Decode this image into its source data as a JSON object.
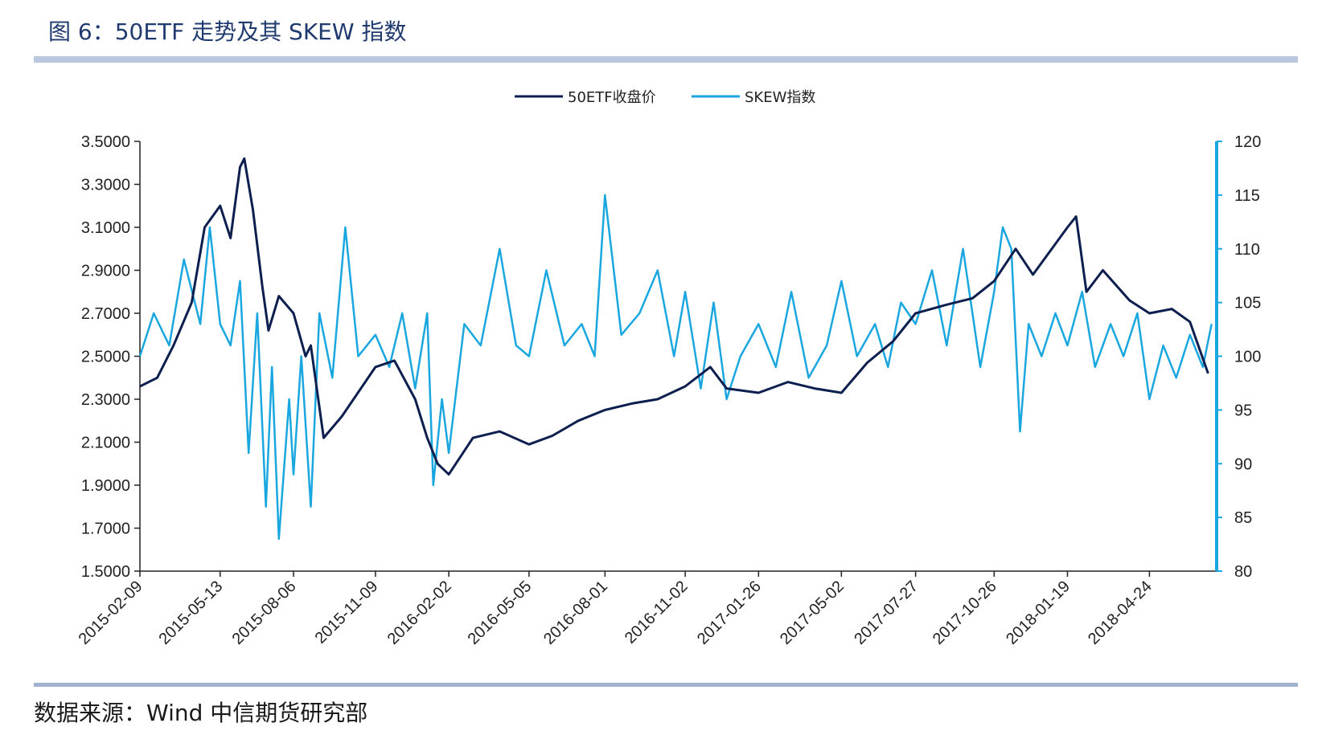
{
  "title": "图 6：50ETF 走势及其 SKEW 指数",
  "source": "数据来源：Wind  中信期货研究部",
  "colors": {
    "etf": "#0d1f4f",
    "skew": "#1aa7e0",
    "band": "#b9c8dd"
  },
  "chart_data": {
    "type": "line",
    "title": "",
    "x_tick_labels": [
      "2015-02-09",
      "2015-05-13",
      "2015-08-06",
      "2015-11-09",
      "2016-02-02",
      "2016-05-05",
      "2016-08-01",
      "2016-11-02",
      "2017-01-26",
      "2017-05-02",
      "2017-07-27",
      "2017-10-26",
      "2018-01-19",
      "2018-04-24"
    ],
    "y_left": {
      "min": 1.5,
      "max": 3.5,
      "ticks": [
        "3.5000",
        "3.3000",
        "3.1000",
        "2.9000",
        "2.7000",
        "2.5000",
        "2.3000",
        "2.1000",
        "1.9000",
        "1.7000",
        "1.5000"
      ]
    },
    "y_right": {
      "min": 80,
      "max": 120,
      "ticks": [
        "120",
        "115",
        "110",
        "105",
        "100",
        "95",
        "90",
        "85",
        "80"
      ]
    },
    "legend_position": "top-center",
    "series": [
      {
        "name": "50ETF收盘价",
        "axis": "left",
        "x": [
          "2015-02-09",
          "2015-03-01",
          "2015-03-20",
          "2015-04-10",
          "2015-04-25",
          "2015-05-13",
          "2015-05-25",
          "2015-06-05",
          "2015-06-10",
          "2015-06-20",
          "2015-07-01",
          "2015-07-08",
          "2015-07-20",
          "2015-08-06",
          "2015-08-20",
          "2015-08-26",
          "2015-09-10",
          "2015-10-01",
          "2015-11-09",
          "2015-12-01",
          "2015-12-25",
          "2016-01-08",
          "2016-01-20",
          "2016-02-02",
          "2016-03-01",
          "2016-04-01",
          "2016-05-05",
          "2016-06-01",
          "2016-07-01",
          "2016-08-01",
          "2016-09-01",
          "2016-10-01",
          "2016-11-02",
          "2016-12-01",
          "2016-12-20",
          "2017-01-26",
          "2017-03-01",
          "2017-04-01",
          "2017-05-02",
          "2017-06-01",
          "2017-07-01",
          "2017-07-27",
          "2017-09-01",
          "2017-10-01",
          "2017-10-26",
          "2017-11-20",
          "2017-12-10",
          "2018-01-19",
          "2018-01-29",
          "2018-02-10",
          "2018-03-01",
          "2018-04-01",
          "2018-04-24",
          "2018-05-20",
          "2018-06-10",
          "2018-07-01"
        ],
        "values": [
          2.36,
          2.4,
          2.55,
          2.75,
          3.1,
          3.2,
          3.05,
          3.38,
          3.42,
          3.18,
          2.82,
          2.62,
          2.78,
          2.7,
          2.5,
          2.55,
          2.12,
          2.22,
          2.45,
          2.48,
          2.3,
          2.12,
          2.0,
          1.95,
          2.12,
          2.15,
          2.09,
          2.13,
          2.2,
          2.25,
          2.28,
          2.3,
          2.36,
          2.45,
          2.35,
          2.33,
          2.38,
          2.35,
          2.33,
          2.47,
          2.57,
          2.7,
          2.74,
          2.77,
          2.85,
          3.0,
          2.88,
          3.1,
          3.15,
          2.8,
          2.9,
          2.76,
          2.7,
          2.72,
          2.66,
          2.42
        ]
      },
      {
        "name": "SKEW指数",
        "axis": "right",
        "x": [
          "2015-02-09",
          "2015-02-25",
          "2015-03-15",
          "2015-04-01",
          "2015-04-20",
          "2015-05-01",
          "2015-05-13",
          "2015-05-25",
          "2015-06-05",
          "2015-06-15",
          "2015-06-25",
          "2015-07-05",
          "2015-07-12",
          "2015-07-20",
          "2015-08-01",
          "2015-08-06",
          "2015-08-15",
          "2015-08-26",
          "2015-09-05",
          "2015-09-20",
          "2015-10-05",
          "2015-10-20",
          "2015-11-09",
          "2015-11-25",
          "2015-12-10",
          "2015-12-25",
          "2016-01-08",
          "2016-01-15",
          "2016-01-25",
          "2016-02-02",
          "2016-02-20",
          "2016-03-10",
          "2016-04-01",
          "2016-04-20",
          "2016-05-05",
          "2016-05-25",
          "2016-06-15",
          "2016-07-05",
          "2016-07-20",
          "2016-08-01",
          "2016-08-20",
          "2016-09-10",
          "2016-10-01",
          "2016-10-20",
          "2016-11-02",
          "2016-11-20",
          "2016-12-05",
          "2016-12-20",
          "2017-01-05",
          "2017-01-26",
          "2017-02-15",
          "2017-03-05",
          "2017-03-25",
          "2017-04-15",
          "2017-05-02",
          "2017-05-20",
          "2017-06-10",
          "2017-06-25",
          "2017-07-10",
          "2017-07-27",
          "2017-08-15",
          "2017-09-01",
          "2017-09-20",
          "2017-10-10",
          "2017-10-26",
          "2017-11-05",
          "2017-11-15",
          "2017-11-25",
          "2017-12-05",
          "2017-12-20",
          "2018-01-05",
          "2018-01-19",
          "2018-02-05",
          "2018-02-20",
          "2018-03-10",
          "2018-03-25",
          "2018-04-10",
          "2018-04-24",
          "2018-05-10",
          "2018-05-25",
          "2018-06-10",
          "2018-06-25",
          "2018-07-05"
        ],
        "values": [
          100,
          104,
          101,
          109,
          103,
          112,
          103,
          101,
          107,
          91,
          104,
          86,
          99,
          83,
          96,
          89,
          100,
          86,
          104,
          98,
          112,
          100,
          102,
          99,
          104,
          97,
          104,
          88,
          96,
          91,
          103,
          101,
          110,
          101,
          100,
          108,
          101,
          103,
          100,
          115,
          102,
          104,
          108,
          100,
          106,
          97,
          105,
          96,
          100,
          103,
          99,
          106,
          98,
          101,
          107,
          100,
          103,
          99,
          105,
          103,
          108,
          101,
          110,
          99,
          106,
          112,
          110,
          93,
          103,
          100,
          104,
          101,
          106,
          99,
          103,
          100,
          104,
          96,
          101,
          98,
          102,
          99,
          103
        ]
      }
    ]
  }
}
